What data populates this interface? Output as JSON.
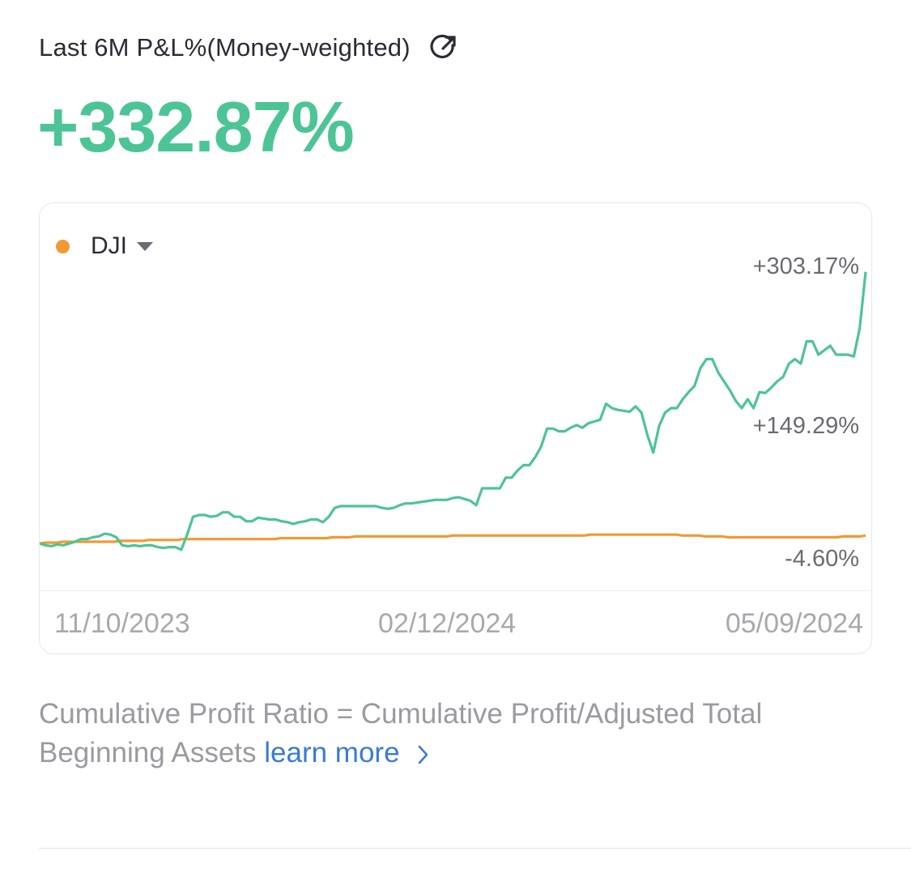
{
  "header": {
    "title": "Last 6M P&L%(Money-weighted)",
    "share_icon": "share-out-icon"
  },
  "summary": {
    "value": "+332.87%",
    "color": "#4dc495"
  },
  "chart": {
    "benchmark_label": "DJI",
    "benchmark_color": "#f09a33",
    "portfolio_color": "#4dc495",
    "labels": {
      "top": "+303.17%",
      "mid": "+149.29%",
      "bottom": "-4.60%"
    }
  },
  "chart_data": {
    "type": "line",
    "x_ticks": [
      "11/10/2023",
      "02/12/2024",
      "05/09/2024"
    ],
    "y_labels": [
      "+303.17%",
      "+149.29%",
      "-4.60%"
    ],
    "ylim": [
      -20,
      320
    ],
    "grid": false,
    "legend": "top-left",
    "series": [
      {
        "name": "",
        "color": "#4dc495",
        "values": [
          -2,
          -4,
          -5,
          -3,
          -4,
          -2,
          0,
          3,
          3,
          5,
          6,
          9,
          8,
          5,
          -4,
          -5,
          -4,
          -5,
          -4,
          -4,
          -6,
          -7,
          -6,
          -6,
          -9,
          8,
          28,
          30,
          30,
          28,
          29,
          33,
          33,
          28,
          28,
          23,
          23,
          27,
          26,
          25,
          25,
          23,
          22,
          20,
          22,
          23,
          25,
          25,
          22,
          28,
          38,
          40,
          40,
          40,
          40,
          40,
          40,
          40,
          38,
          37,
          38,
          41,
          43,
          43,
          44,
          45,
          46,
          47,
          47,
          47,
          49,
          50,
          48,
          46,
          41,
          60,
          60,
          60,
          60,
          72,
          72,
          80,
          86,
          86,
          95,
          107,
          127,
          127,
          124,
          124,
          128,
          131,
          128,
          133,
          135,
          137,
          155,
          150,
          148,
          147,
          146,
          152,
          145,
          120,
          100,
          130,
          145,
          150,
          150,
          160,
          168,
          175,
          195,
          205,
          205,
          190,
          180,
          170,
          158,
          150,
          160,
          150,
          168,
          167,
          173,
          180,
          185,
          200,
          205,
          200,
          225,
          225,
          210,
          215,
          220,
          210,
          210,
          210,
          208,
          240,
          303
        ]
      },
      {
        "name": "DJI",
        "color": "#f09a33",
        "values": [
          -2,
          -1,
          -1,
          -1,
          0,
          0,
          0,
          0,
          0,
          0,
          0,
          0,
          0,
          0,
          1,
          1,
          1,
          1,
          1,
          2,
          2,
          2,
          2,
          2,
          2,
          3,
          3,
          3,
          3,
          3,
          3,
          3,
          3,
          3,
          3,
          3,
          3,
          3,
          3,
          3,
          3,
          3,
          4,
          4,
          4,
          4,
          4,
          4,
          4,
          4,
          4,
          5,
          5,
          5,
          5,
          6,
          6,
          6,
          6,
          6,
          6,
          6,
          6,
          6,
          6,
          6,
          6,
          6,
          6,
          6,
          6,
          6,
          7,
          7,
          7,
          7,
          7,
          7,
          7,
          7,
          7,
          7,
          7,
          7,
          7,
          7,
          7,
          7,
          7,
          7,
          7,
          7,
          7,
          7,
          7,
          7,
          8,
          8,
          8,
          8,
          8,
          8,
          8,
          8,
          8,
          8,
          8,
          8,
          8,
          8,
          8,
          8,
          7,
          7,
          7,
          7,
          6,
          6,
          6,
          6,
          5,
          5,
          5,
          5,
          5,
          5,
          5,
          5,
          5,
          5,
          5,
          5,
          5,
          5,
          5,
          5,
          5,
          5,
          5,
          5,
          6,
          6,
          6,
          6,
          7
        ]
      }
    ]
  },
  "footnote": {
    "text": "Cumulative Profit Ratio = Cumulative Profit/Adjusted Total Beginning Assets ",
    "link": "learn more",
    "link_color": "#3a7bd5"
  }
}
